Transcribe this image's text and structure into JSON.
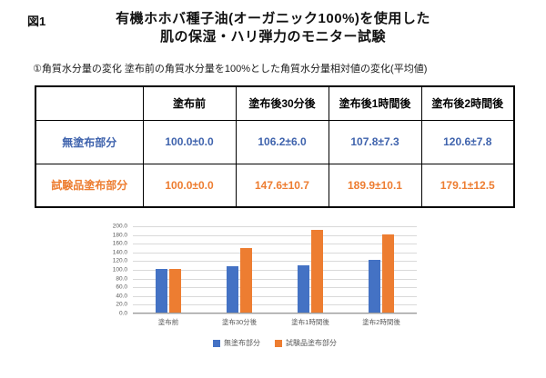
{
  "figure_label": "図1",
  "title_line1": "有機ホホバ種子油(オーガニック100%)を使用した",
  "title_line2": "肌の保湿・ハリ弾力のモニター試験",
  "subtitle": "①角質水分量の変化 塗布前の角質水分量を100%とした角質水分量相対値の変化(平均値)",
  "table": {
    "corner": "",
    "columns": [
      "塗布前",
      "塗布後30分後",
      "塗布後1時間後",
      "塗布後2時間後"
    ],
    "rows": [
      {
        "label": "無塗布部分",
        "color": "#3f63ad",
        "values": [
          "100.0±0.0",
          "106.2±6.0",
          "107.8±7.3",
          "120.6±7.8"
        ]
      },
      {
        "label": "試験品塗布部分",
        "color": "#ed7d31",
        "values": [
          "100.0±0.0",
          "147.6±10.7",
          "189.9±10.1",
          "179.1±12.5"
        ]
      }
    ]
  },
  "chart_data": {
    "type": "bar",
    "title": "",
    "xlabel": "",
    "ylabel": "",
    "categories": [
      "塗布前",
      "塗布30分後",
      "塗布1時間後",
      "塗布2時間後"
    ],
    "series": [
      {
        "name": "無塗布部分",
        "color": "#4472c4",
        "values": [
          100.0,
          106.2,
          107.8,
          120.6
        ]
      },
      {
        "name": "試験品塗布部分",
        "color": "#ed7d31",
        "values": [
          100.0,
          147.6,
          189.9,
          179.1
        ]
      }
    ],
    "ylim": [
      0,
      200
    ],
    "ytick_step": 20,
    "grid": true,
    "legend_position": "bottom"
  }
}
